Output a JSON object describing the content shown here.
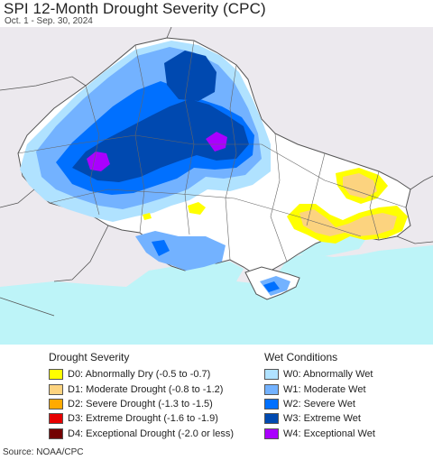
{
  "title": "SPI 12-Month Drought Severity (CPC)",
  "subtitle": "Oct. 1 - Sep. 30, 2024",
  "source": "Source: NOAA/CPC",
  "map": {
    "background_color": "#ece9ee",
    "land_color": "#ffffff",
    "sea_color": "#bdf4f8",
    "border_color": "#666666"
  },
  "legend": {
    "drought": {
      "heading": "Drought Severity",
      "items": [
        {
          "label": "D0: Abnormally Dry (-0.5 to -0.7)",
          "color": "#ffff00"
        },
        {
          "label": "D1: Moderate Drought (-0.8 to -1.2)",
          "color": "#fcd37f"
        },
        {
          "label": "D2: Severe Drought (-1.3 to -1.5)",
          "color": "#ffaa00"
        },
        {
          "label": "D3: Extreme Drought (-1.6 to -1.9)",
          "color": "#e60000"
        },
        {
          "label": "D4: Exceptional Drought (-2.0 or less)",
          "color": "#730000"
        }
      ]
    },
    "wet": {
      "heading": "Wet Conditions",
      "items": [
        {
          "label": "W0: Abnormally Wet",
          "color": "#b0e2ff"
        },
        {
          "label": "W1: Moderate Wet",
          "color": "#73b2ff"
        },
        {
          "label": "W2: Severe Wet",
          "color": "#0070ff"
        },
        {
          "label": "W3: Extreme Wet",
          "color": "#0049b0"
        },
        {
          "label": "W4: Exceptional Wet",
          "color": "#aa00ff"
        }
      ]
    }
  }
}
